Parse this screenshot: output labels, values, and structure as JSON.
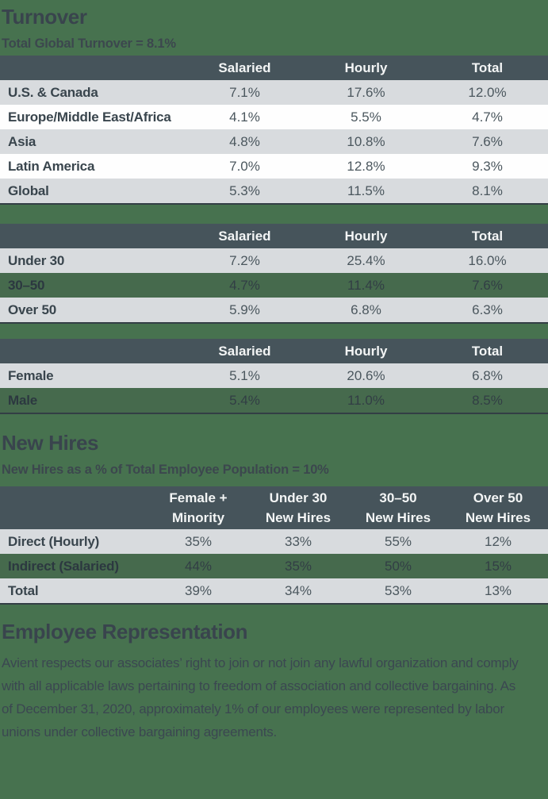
{
  "colors": {
    "page_background": "#47724F",
    "table_header_background": "#46545B",
    "gray_row_background": "#D8DBDE",
    "white_row_background": "#FEFEFE",
    "green_row_background": "#466A4D",
    "heading_text": "#39444D",
    "header_text": "#F3F5F5",
    "value_text": "#4B575E",
    "table_bottom_border": "#333E45"
  },
  "turnover_section": {
    "title": "Turnover",
    "subtitle": "Total Global Turnover = 8.1%",
    "region_table": {
      "headers": [
        "Salaried",
        "Hourly",
        "Total"
      ],
      "rows": [
        {
          "label": "U.S. & Canada",
          "values": [
            "7.1%",
            "17.6%",
            "12.0%"
          ],
          "style": "gray"
        },
        {
          "label": "Europe/Middle East/Africa",
          "values": [
            "4.1%",
            "5.5%",
            "4.7%"
          ],
          "style": "white"
        },
        {
          "label": "Asia",
          "values": [
            "4.8%",
            "10.8%",
            "7.6%"
          ],
          "style": "gray"
        },
        {
          "label": "Latin America",
          "values": [
            "7.0%",
            "12.8%",
            "9.3%"
          ],
          "style": "white"
        },
        {
          "label": "Global",
          "values": [
            "5.3%",
            "11.5%",
            "8.1%"
          ],
          "style": "gray"
        }
      ]
    },
    "age_table": {
      "headers": [
        "Salaried",
        "Hourly",
        "Total"
      ],
      "rows": [
        {
          "label": "Under 30",
          "values": [
            "7.2%",
            "25.4%",
            "16.0%"
          ],
          "style": "gray"
        },
        {
          "label": "30–50",
          "values": [
            "4.7%",
            "11.4%",
            "7.6%"
          ],
          "style": "green"
        },
        {
          "label": "Over 50",
          "values": [
            "5.9%",
            "6.8%",
            "6.3%"
          ],
          "style": "gray"
        }
      ]
    },
    "gender_table": {
      "headers": [
        "Salaried",
        "Hourly",
        "Total"
      ],
      "rows": [
        {
          "label": "Female",
          "values": [
            "5.1%",
            "20.6%",
            "6.8%"
          ],
          "style": "gray"
        },
        {
          "label": "Male",
          "values": [
            "5.4%",
            "11.0%",
            "8.5%"
          ],
          "style": "green"
        }
      ]
    }
  },
  "new_hires_section": {
    "title": "New Hires",
    "subtitle": "New Hires as a % of Total Employee Population = 10%",
    "table": {
      "headers": [
        "Female +\nMinority",
        "Under 30\nNew Hires",
        "30–50\nNew Hires",
        "Over 50\nNew Hires"
      ],
      "rows": [
        {
          "label": "Direct (Hourly)",
          "values": [
            "35%",
            "33%",
            "55%",
            "12%"
          ],
          "style": "gray"
        },
        {
          "label": "Indirect (Salaried)",
          "values": [
            "44%",
            "35%",
            "50%",
            "15%"
          ],
          "style": "green"
        },
        {
          "label": "Total",
          "values": [
            "39%",
            "34%",
            "53%",
            "13%"
          ],
          "style": "gray"
        }
      ]
    }
  },
  "employee_representation_section": {
    "title": "Employee Representation",
    "body": "Avient respects our associates’ right to join or not join any lawful organization and comply with all applicable laws pertaining to freedom of association and collective bargaining. As of December 31, 2020, approximately 1% of our employees were represented by labor unions under collective bargaining agreements."
  }
}
